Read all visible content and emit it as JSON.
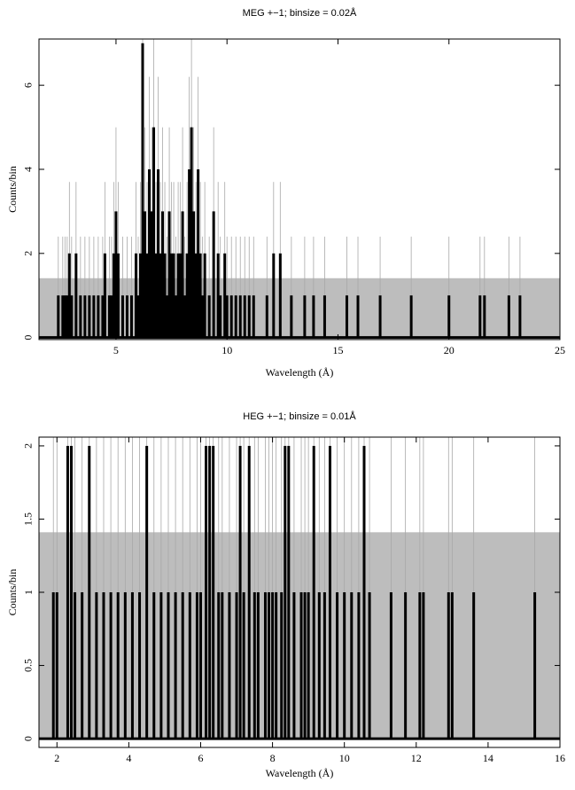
{
  "chart_data": [
    {
      "type": "histogram",
      "title": "MEG +−1; binsize = 0.02Å",
      "xlabel": "Wavelength (Å)",
      "ylabel": "Counts/bin",
      "xlim": [
        1.53,
        25
      ],
      "ylim": [
        -0.05,
        7.1
      ],
      "xticks": [
        5,
        10,
        15,
        20,
        25
      ],
      "yticks": [
        0,
        2,
        4,
        6
      ],
      "binsize": 0.02,
      "band": 1.41,
      "color": "#000000",
      "band_color": "#bdbdbd",
      "error_color": "#a8a8a8",
      "x": [
        2.4,
        2.6,
        2.7,
        2.8,
        2.9,
        3.0,
        3.2,
        3.4,
        3.6,
        3.8,
        4.0,
        4.2,
        4.4,
        4.5,
        4.7,
        4.8,
        4.9,
        5.0,
        5.1,
        5.3,
        5.5,
        5.7,
        5.9,
        6.0,
        6.1,
        6.2,
        6.3,
        6.4,
        6.5,
        6.6,
        6.7,
        6.8,
        6.9,
        7.0,
        7.1,
        7.2,
        7.3,
        7.4,
        7.5,
        7.6,
        7.7,
        7.8,
        7.9,
        8.0,
        8.1,
        8.2,
        8.3,
        8.4,
        8.5,
        8.6,
        8.7,
        8.8,
        8.9,
        9.0,
        9.2,
        9.4,
        9.6,
        9.7,
        9.9,
        10.0,
        10.2,
        10.4,
        10.6,
        10.8,
        11.0,
        11.2,
        11.8,
        12.1,
        12.4,
        12.9,
        13.5,
        13.9,
        14.4,
        15.4,
        15.9,
        16.9,
        18.3,
        20.0,
        21.4,
        21.6,
        22.7,
        23.2
      ],
      "values": [
        1,
        1,
        1,
        1,
        2,
        1,
        2,
        1,
        1,
        1,
        1,
        1,
        1,
        2,
        1,
        1,
        2,
        3,
        2,
        1,
        1,
        1,
        2,
        1,
        2,
        7,
        3,
        2,
        4,
        3,
        5,
        2,
        4,
        2,
        3,
        2,
        1,
        3,
        2,
        2,
        1,
        2,
        2,
        3,
        1,
        2,
        4,
        5,
        3,
        2,
        4,
        2,
        1,
        2,
        1,
        3,
        2,
        1,
        2,
        1,
        1,
        1,
        1,
        1,
        1,
        1,
        1,
        2,
        2,
        1,
        1,
        1,
        1,
        1,
        1,
        1,
        1,
        1,
        1,
        1,
        1,
        1
      ],
      "errors": [
        1.4,
        1.4,
        1.4,
        1.4,
        1.7,
        1.4,
        1.7,
        1.4,
        1.4,
        1.4,
        1.4,
        1.4,
        1.4,
        1.7,
        1.4,
        1.4,
        1.7,
        2.0,
        1.7,
        1.4,
        1.4,
        1.4,
        1.7,
        1.4,
        1.7,
        2.7,
        2.0,
        1.7,
        2.2,
        2.0,
        2.4,
        1.7,
        2.2,
        1.7,
        2.0,
        1.7,
        1.4,
        2.0,
        1.7,
        1.7,
        1.4,
        1.7,
        1.7,
        2.0,
        1.4,
        1.7,
        2.2,
        2.4,
        2.0,
        1.7,
        2.2,
        1.7,
        1.4,
        1.7,
        1.4,
        2.0,
        1.7,
        1.4,
        1.7,
        1.4,
        1.4,
        1.4,
        1.4,
        1.4,
        1.4,
        1.4,
        1.4,
        1.7,
        1.7,
        1.4,
        1.4,
        1.4,
        1.4,
        1.4,
        1.4,
        1.4,
        1.4,
        1.4,
        1.4,
        1.4,
        1.4,
        1.4
      ]
    },
    {
      "type": "histogram",
      "title": "HEG +−1; binsize = 0.01Å",
      "xlabel": "Wavelength (Å)",
      "ylabel": "Counts/bin",
      "xlim": [
        1.5,
        16
      ],
      "ylim": [
        -0.06,
        2.06
      ],
      "xticks": [
        2,
        4,
        6,
        8,
        10,
        12,
        14,
        16
      ],
      "yticks": [
        0,
        0.5,
        1,
        1.5,
        2
      ],
      "binsize": 0.01,
      "band": 1.41,
      "color": "#000000",
      "band_color": "#bdbdbd",
      "error_color": "#a8a8a8",
      "x": [
        1.9,
        2.0,
        2.3,
        2.4,
        2.5,
        2.7,
        2.9,
        3.1,
        3.3,
        3.5,
        3.7,
        3.9,
        4.1,
        4.3,
        4.5,
        4.7,
        4.9,
        5.1,
        5.3,
        5.5,
        5.7,
        5.9,
        6.0,
        6.15,
        6.25,
        6.35,
        6.5,
        6.6,
        6.8,
        7.0,
        7.1,
        7.2,
        7.35,
        7.5,
        7.6,
        7.8,
        7.9,
        8.0,
        8.1,
        8.25,
        8.35,
        8.45,
        8.6,
        8.8,
        8.9,
        9.0,
        9.15,
        9.3,
        9.45,
        9.6,
        9.8,
        10.0,
        10.2,
        10.4,
        10.55,
        10.7,
        11.3,
        11.7,
        12.1,
        12.2,
        12.9,
        13.0,
        13.6,
        15.3
      ],
      "values": [
        1,
        1,
        2,
        2,
        1,
        1,
        2,
        1,
        1,
        1,
        1,
        1,
        1,
        1,
        2,
        1,
        1,
        1,
        1,
        1,
        1,
        1,
        1,
        2,
        2,
        2,
        1,
        1,
        1,
        1,
        2,
        1,
        2,
        1,
        1,
        1,
        1,
        1,
        1,
        1,
        2,
        2,
        1,
        1,
        1,
        1,
        2,
        1,
        1,
        2,
        1,
        1,
        1,
        1,
        2,
        1,
        1,
        1,
        1,
        1,
        1,
        1,
        1,
        1
      ],
      "errors": [
        1.4,
        1.4,
        1.7,
        1.7,
        1.4,
        1.4,
        1.7,
        1.4,
        1.4,
        1.4,
        1.4,
        1.4,
        1.4,
        1.4,
        1.7,
        1.4,
        1.4,
        1.4,
        1.4,
        1.4,
        1.4,
        1.4,
        1.4,
        1.7,
        1.7,
        1.7,
        1.4,
        1.4,
        1.4,
        1.4,
        1.7,
        1.4,
        1.7,
        1.4,
        1.4,
        1.4,
        1.4,
        1.4,
        1.4,
        1.4,
        1.7,
        1.7,
        1.4,
        1.4,
        1.4,
        1.4,
        1.7,
        1.4,
        1.4,
        1.7,
        1.4,
        1.4,
        1.4,
        1.4,
        1.7,
        1.4,
        1.4,
        1.4,
        1.4,
        1.4,
        1.4,
        1.4,
        1.4,
        1.4
      ]
    }
  ]
}
